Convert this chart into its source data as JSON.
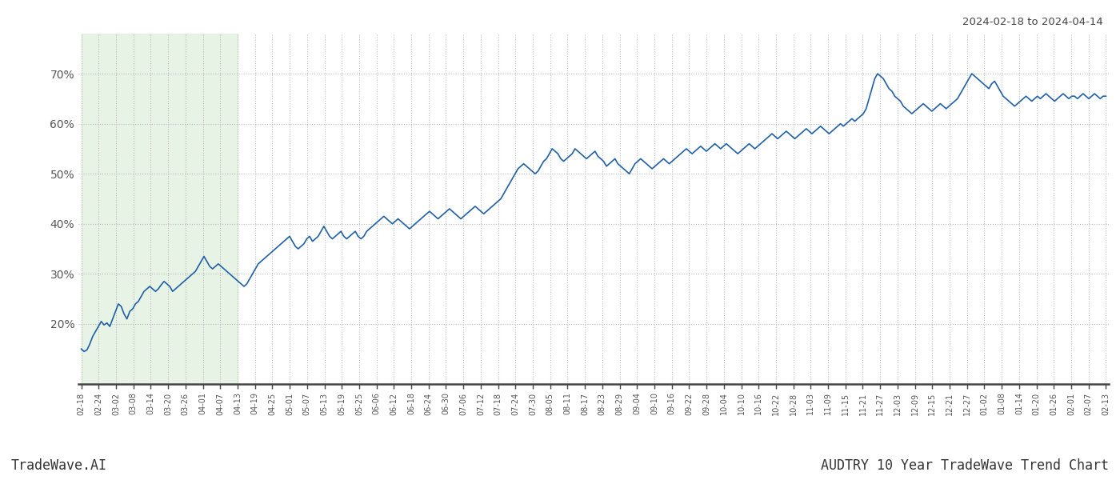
{
  "title_top_right": "2024-02-18 to 2024-04-14",
  "footer_left": "TradeWave.AI",
  "footer_right": "AUDTRY 10 Year TradeWave Trend Chart",
  "line_color": "#2060a8",
  "line_width": 1.2,
  "background_color": "#ffffff",
  "grid_color": "#bbbbbb",
  "grid_style": ":",
  "shaded_region_color": "#d4ead0",
  "shaded_region_alpha": 0.55,
  "y_ticks": [
    20,
    30,
    40,
    50,
    60,
    70
  ],
  "y_tick_labels": [
    "20%",
    "30%",
    "40%",
    "50%",
    "60%",
    "70%"
  ],
  "ylim": [
    8,
    78
  ],
  "x_tick_labels": [
    "02-18",
    "02-24",
    "03-02",
    "03-08",
    "03-14",
    "03-20",
    "03-26",
    "04-01",
    "04-07",
    "04-13",
    "04-19",
    "04-25",
    "05-01",
    "05-07",
    "05-13",
    "05-19",
    "05-25",
    "06-06",
    "06-12",
    "06-18",
    "06-24",
    "06-30",
    "07-06",
    "07-12",
    "07-18",
    "07-24",
    "07-30",
    "08-05",
    "08-11",
    "08-17",
    "08-23",
    "08-29",
    "09-04",
    "09-10",
    "09-16",
    "09-22",
    "09-28",
    "10-04",
    "10-10",
    "10-16",
    "10-22",
    "10-28",
    "11-03",
    "11-09",
    "11-15",
    "11-21",
    "11-27",
    "12-03",
    "12-09",
    "12-15",
    "12-21",
    "12-27",
    "01-02",
    "01-08",
    "01-14",
    "01-20",
    "01-26",
    "02-01",
    "02-07",
    "02-13"
  ],
  "shaded_x_start_label": "02-18",
  "shaded_x_end_label": "04-13",
  "values": [
    15.0,
    14.5,
    14.8,
    16.0,
    17.5,
    18.5,
    19.5,
    20.5,
    19.8,
    20.2,
    19.5,
    21.0,
    22.5,
    24.0,
    23.5,
    22.0,
    21.0,
    22.5,
    23.0,
    24.0,
    24.5,
    25.5,
    26.5,
    27.0,
    27.5,
    27.0,
    26.5,
    27.0,
    27.8,
    28.5,
    28.0,
    27.5,
    26.5,
    27.0,
    27.5,
    28.0,
    28.5,
    29.0,
    29.5,
    30.0,
    30.5,
    31.5,
    32.5,
    33.5,
    32.5,
    31.5,
    31.0,
    31.5,
    32.0,
    31.5,
    31.0,
    30.5,
    30.0,
    29.5,
    29.0,
    28.5,
    28.0,
    27.5,
    28.0,
    29.0,
    30.0,
    31.0,
    32.0,
    32.5,
    33.0,
    33.5,
    34.0,
    34.5,
    35.0,
    35.5,
    36.0,
    36.5,
    37.0,
    37.5,
    36.5,
    35.5,
    35.0,
    35.5,
    36.0,
    37.0,
    37.5,
    36.5,
    37.0,
    37.5,
    38.5,
    39.5,
    38.5,
    37.5,
    37.0,
    37.5,
    38.0,
    38.5,
    37.5,
    37.0,
    37.5,
    38.0,
    38.5,
    37.5,
    37.0,
    37.5,
    38.5,
    39.0,
    39.5,
    40.0,
    40.5,
    41.0,
    41.5,
    41.0,
    40.5,
    40.0,
    40.5,
    41.0,
    40.5,
    40.0,
    39.5,
    39.0,
    39.5,
    40.0,
    40.5,
    41.0,
    41.5,
    42.0,
    42.5,
    42.0,
    41.5,
    41.0,
    41.5,
    42.0,
    42.5,
    43.0,
    42.5,
    42.0,
    41.5,
    41.0,
    41.5,
    42.0,
    42.5,
    43.0,
    43.5,
    43.0,
    42.5,
    42.0,
    42.5,
    43.0,
    43.5,
    44.0,
    44.5,
    45.0,
    46.0,
    47.0,
    48.0,
    49.0,
    50.0,
    51.0,
    51.5,
    52.0,
    51.5,
    51.0,
    50.5,
    50.0,
    50.5,
    51.5,
    52.5,
    53.0,
    54.0,
    55.0,
    54.5,
    54.0,
    53.0,
    52.5,
    53.0,
    53.5,
    54.0,
    55.0,
    54.5,
    54.0,
    53.5,
    53.0,
    53.5,
    54.0,
    54.5,
    53.5,
    53.0,
    52.5,
    51.5,
    52.0,
    52.5,
    53.0,
    52.0,
    51.5,
    51.0,
    50.5,
    50.0,
    51.0,
    52.0,
    52.5,
    53.0,
    52.5,
    52.0,
    51.5,
    51.0,
    51.5,
    52.0,
    52.5,
    53.0,
    52.5,
    52.0,
    52.5,
    53.0,
    53.5,
    54.0,
    54.5,
    55.0,
    54.5,
    54.0,
    54.5,
    55.0,
    55.5,
    55.0,
    54.5,
    55.0,
    55.5,
    56.0,
    55.5,
    55.0,
    55.5,
    56.0,
    55.5,
    55.0,
    54.5,
    54.0,
    54.5,
    55.0,
    55.5,
    56.0,
    55.5,
    55.0,
    55.5,
    56.0,
    56.5,
    57.0,
    57.5,
    58.0,
    57.5,
    57.0,
    57.5,
    58.0,
    58.5,
    58.0,
    57.5,
    57.0,
    57.5,
    58.0,
    58.5,
    59.0,
    58.5,
    58.0,
    58.5,
    59.0,
    59.5,
    59.0,
    58.5,
    58.0,
    58.5,
    59.0,
    59.5,
    60.0,
    59.5,
    60.0,
    60.5,
    61.0,
    60.5,
    61.0,
    61.5,
    62.0,
    63.0,
    65.0,
    67.0,
    69.0,
    70.0,
    69.5,
    69.0,
    68.0,
    67.0,
    66.5,
    65.5,
    65.0,
    64.5,
    63.5,
    63.0,
    62.5,
    62.0,
    62.5,
    63.0,
    63.5,
    64.0,
    63.5,
    63.0,
    62.5,
    63.0,
    63.5,
    64.0,
    63.5,
    63.0,
    63.5,
    64.0,
    64.5,
    65.0,
    66.0,
    67.0,
    68.0,
    69.0,
    70.0,
    69.5,
    69.0,
    68.5,
    68.0,
    67.5,
    67.0,
    68.0,
    68.5,
    67.5,
    66.5,
    65.5,
    65.0,
    64.5,
    64.0,
    63.5,
    64.0,
    64.5,
    65.0,
    65.5,
    65.0,
    64.5,
    65.0,
    65.5,
    65.0,
    65.5,
    66.0,
    65.5,
    65.0,
    64.5,
    65.0,
    65.5,
    66.0,
    65.5,
    65.0,
    65.5,
    65.5,
    65.0,
    65.5,
    66.0,
    65.5,
    65.0,
    65.5,
    66.0,
    65.5,
    65.0,
    65.5,
    65.5
  ]
}
